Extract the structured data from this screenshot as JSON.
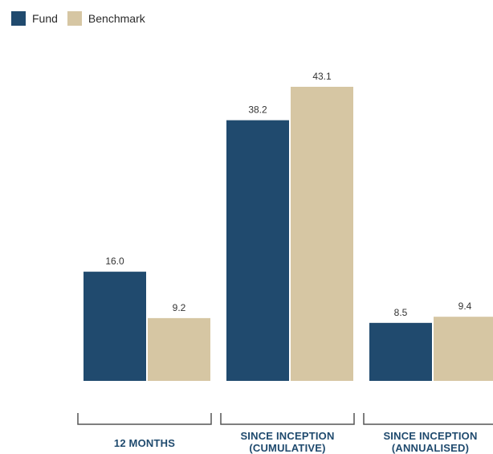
{
  "legend": {
    "items": [
      {
        "label": "Fund",
        "color": "#204a6e"
      },
      {
        "label": "Benchmark",
        "color": "#d6c6a3"
      }
    ]
  },
  "chart_data": {
    "type": "bar",
    "categories": [
      [
        "12 MONTHS"
      ],
      [
        "SINCE INCEPTION",
        "(CUMULATIVE)"
      ],
      [
        "SINCE INCEPTION",
        "(ANNUALISED)"
      ]
    ],
    "series": [
      {
        "name": "Fund",
        "color": "#204a6e",
        "values": [
          16.0,
          38.2,
          8.5
        ]
      },
      {
        "name": "Benchmark",
        "color": "#d6c6a3",
        "values": [
          9.2,
          43.1,
          9.4
        ]
      }
    ],
    "ylim": [
      0,
      43.1
    ],
    "grid": false,
    "legend_position": "top-left",
    "data_labels": true
  }
}
